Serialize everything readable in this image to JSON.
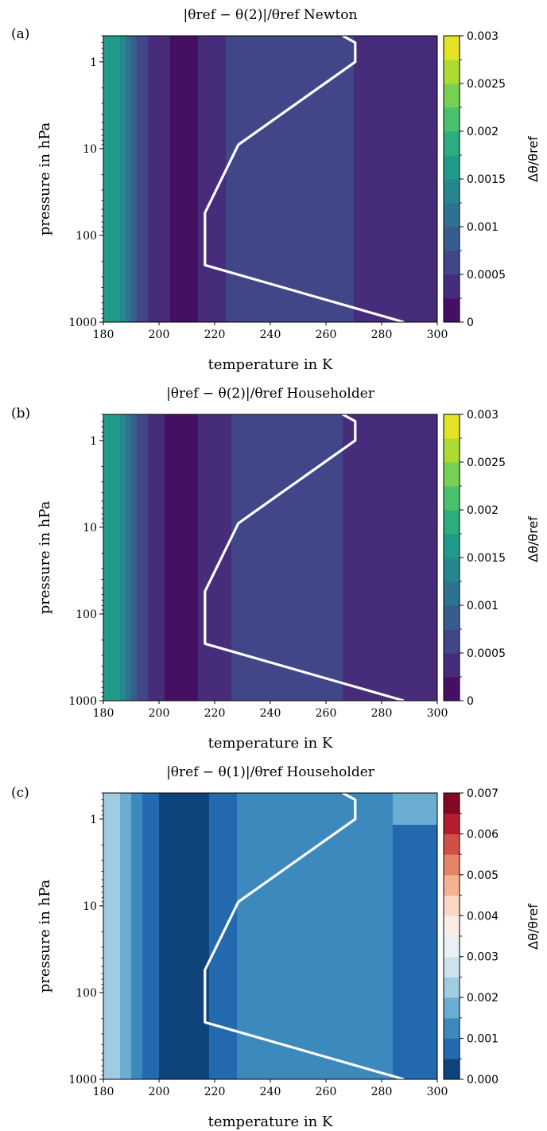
{
  "figure": {
    "panel_letters": [
      "(a)",
      "(b)",
      "(c)"
    ]
  },
  "chart_data": [
    {
      "type": "heatmap",
      "panel": "(a)",
      "title": "|θref − θ(2)|/θref Newton",
      "xlabel": "temperature in K",
      "ylabel": "pressure in hPa",
      "colorbar_label": "Δθ/θref",
      "xlim": [
        180,
        300
      ],
      "ylim": [
        1000,
        0.5
      ],
      "y_scale": "log",
      "x_ticks": [
        "180",
        "200",
        "220",
        "240",
        "260",
        "280",
        "300"
      ],
      "y_ticks": [
        "1",
        "10",
        "100",
        "1000"
      ],
      "colorbar_range": [
        0,
        0.003
      ],
      "colorbar_ticks": [
        "0",
        "0.0005",
        "0.001",
        "0.0015",
        "0.002",
        "0.0025",
        "0.003"
      ],
      "colormap": "viridis",
      "profile_line": {
        "color": "#ffffff",
        "temperature": [
          288,
          216.5,
          216.5,
          228.5,
          270.5,
          270.5,
          266
        ],
        "pressure": [
          1000,
          220,
          55,
          9,
          1,
          0.6,
          0.5
        ]
      }
    },
    {
      "type": "heatmap",
      "panel": "(b)",
      "title": "|θref − θ(2)|/θref Householder",
      "xlabel": "temperature in K",
      "ylabel": "pressure in hPa",
      "colorbar_label": "Δθ/θref",
      "xlim": [
        180,
        300
      ],
      "ylim": [
        1000,
        0.5
      ],
      "y_scale": "log",
      "x_ticks": [
        "180",
        "200",
        "220",
        "240",
        "260",
        "280",
        "300"
      ],
      "y_ticks": [
        "1",
        "10",
        "100",
        "1000"
      ],
      "colorbar_range": [
        0,
        0.003
      ],
      "colorbar_ticks": [
        "0",
        "0.0005",
        "0.001",
        "0.0015",
        "0.002",
        "0.0025",
        "0.003"
      ],
      "colormap": "viridis",
      "profile_line": {
        "color": "#ffffff",
        "temperature": [
          288,
          216.5,
          216.5,
          228.5,
          270.5,
          270.5,
          266
        ],
        "pressure": [
          1000,
          220,
          55,
          9,
          1,
          0.6,
          0.5
        ]
      }
    },
    {
      "type": "heatmap",
      "panel": "(c)",
      "title": "|θref − θ(1)|/θref Householder",
      "xlabel": "temperature in K",
      "ylabel": "pressure in hPa",
      "colorbar_label": "Δθ/θref",
      "xlim": [
        180,
        300
      ],
      "ylim": [
        1000,
        0.5
      ],
      "y_scale": "log",
      "x_ticks": [
        "180",
        "200",
        "220",
        "240",
        "260",
        "280",
        "300"
      ],
      "y_ticks": [
        "1",
        "10",
        "100",
        "1000"
      ],
      "colorbar_range": [
        0,
        0.007
      ],
      "colorbar_ticks": [
        "0.000",
        "0.001",
        "0.002",
        "0.003",
        "0.004",
        "0.005",
        "0.006",
        "0.007"
      ],
      "colormap": "RdBu_r",
      "profile_line": {
        "color": "#ffffff",
        "temperature": [
          288,
          216.5,
          216.5,
          228.5,
          270.5,
          270.5,
          266
        ],
        "pressure": [
          1000,
          220,
          55,
          9,
          1,
          0.6,
          0.5
        ]
      }
    }
  ]
}
